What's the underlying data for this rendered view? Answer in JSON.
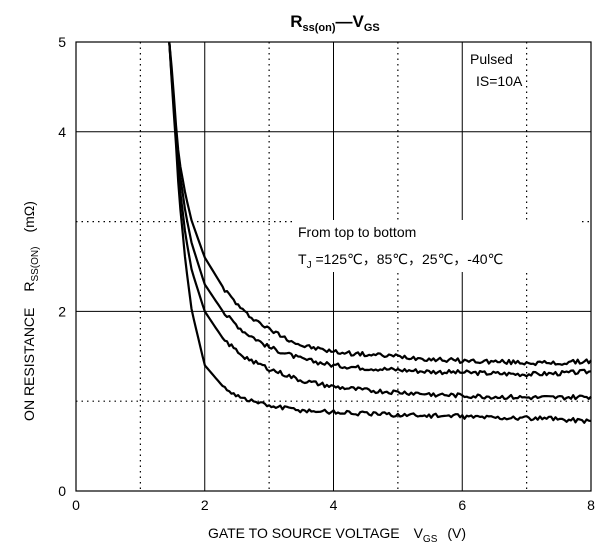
{
  "chart_data": {
    "type": "line",
    "title": {
      "r_main": "R",
      "r_sub": "ss(on)",
      "dash": "—",
      "v_main": "V",
      "v_sub": "GS"
    },
    "xlabel": {
      "main": "GATE TO SOURCE VOLTAGE",
      "sym": "V",
      "sym_sub": "GS",
      "unit": "(V)"
    },
    "ylabel": {
      "main": "ON RESISTANCE",
      "sym": "R",
      "sym_sub": "SS(ON)",
      "unit": "(mΩ)"
    },
    "xlim": [
      0,
      8
    ],
    "ylim": [
      0,
      5
    ],
    "x_ticks": [
      "0",
      "2",
      "4",
      "6",
      "8"
    ],
    "y_ticks": [
      "0",
      "2",
      "4",
      "5"
    ],
    "grid": true,
    "conditions": [
      "Pulsed",
      "IS=10A"
    ],
    "annotation": {
      "line1": "From top to bottom",
      "t": "T",
      "t_sub": "J",
      "rest": " =125℃，85℃，25℃，-40℃"
    },
    "x": [
      1.45,
      1.5,
      1.55,
      1.6,
      1.7,
      1.8,
      2.0,
      2.3,
      2.6,
      3.0,
      3.5,
      4.0,
      4.5,
      5.0,
      5.5,
      6.0,
      6.5,
      7.0,
      7.5,
      8.0
    ],
    "series": [
      {
        "name": "125℃",
        "values": [
          5.0,
          4.6,
          4.1,
          3.7,
          3.3,
          3.0,
          2.6,
          2.25,
          2.0,
          1.8,
          1.62,
          1.55,
          1.52,
          1.5,
          1.47,
          1.45,
          1.44,
          1.43,
          1.42,
          1.45
        ]
      },
      {
        "name": "85℃",
        "values": [
          5.0,
          4.5,
          4.05,
          3.6,
          3.1,
          2.75,
          2.3,
          1.98,
          1.78,
          1.6,
          1.47,
          1.4,
          1.37,
          1.35,
          1.33,
          1.32,
          1.31,
          1.3,
          1.31,
          1.33
        ]
      },
      {
        "name": "25℃",
        "values": [
          5.0,
          4.45,
          4.0,
          3.45,
          2.85,
          2.45,
          2.0,
          1.68,
          1.5,
          1.36,
          1.23,
          1.16,
          1.12,
          1.1,
          1.08,
          1.06,
          1.05,
          1.04,
          1.04,
          1.05
        ]
      },
      {
        "name": "-40℃",
        "values": [
          5.0,
          4.4,
          3.9,
          3.3,
          2.55,
          2.0,
          1.4,
          1.15,
          1.03,
          0.95,
          0.9,
          0.88,
          0.86,
          0.85,
          0.84,
          0.83,
          0.82,
          0.81,
          0.8,
          0.78
        ]
      }
    ]
  }
}
